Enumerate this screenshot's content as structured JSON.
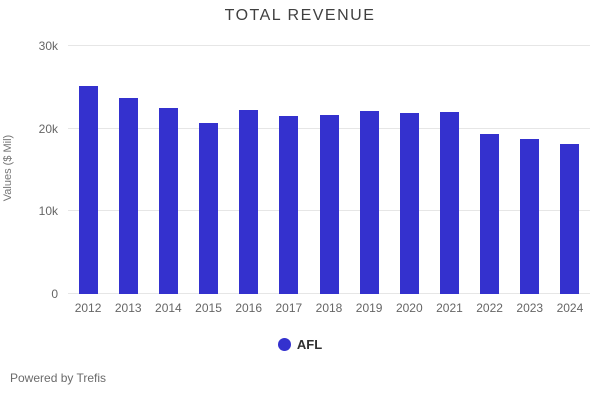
{
  "header": {
    "title": "TOTAL REVENUE"
  },
  "chart_data": {
    "type": "bar",
    "title": "TOTAL REVENUE",
    "xlabel": "",
    "ylabel": "Values ($ Mil)",
    "categories": [
      "2012",
      "2013",
      "2014",
      "2015",
      "2016",
      "2017",
      "2018",
      "2019",
      "2020",
      "2021",
      "2022",
      "2023",
      "2024"
    ],
    "series": [
      {
        "name": "AFL",
        "color": "#3431ce",
        "values": [
          25200,
          23700,
          22500,
          20700,
          22300,
          21500,
          21600,
          22100,
          21900,
          22000,
          19300,
          18700,
          18200
        ]
      }
    ],
    "ylim": [
      0,
      30000
    ],
    "yticks": [
      {
        "value": 0,
        "label": "0"
      },
      {
        "value": 10000,
        "label": "10k"
      },
      {
        "value": 20000,
        "label": "20k"
      },
      {
        "value": 30000,
        "label": "30k"
      }
    ],
    "grid": "horizontal gridlines on",
    "legend_position": "bottom"
  },
  "legend": {
    "items": [
      {
        "label": "AFL",
        "color": "#3431ce"
      }
    ]
  },
  "footer": {
    "powered_by": "Powered by Trefis"
  },
  "colors": {
    "bar": "#3431ce",
    "grid": "#e6e6e6",
    "axis_text": "#666666",
    "title_text": "#404040",
    "legend_text": "#303030",
    "footer_text": "#6b6b6b",
    "background": "#ffffff"
  }
}
